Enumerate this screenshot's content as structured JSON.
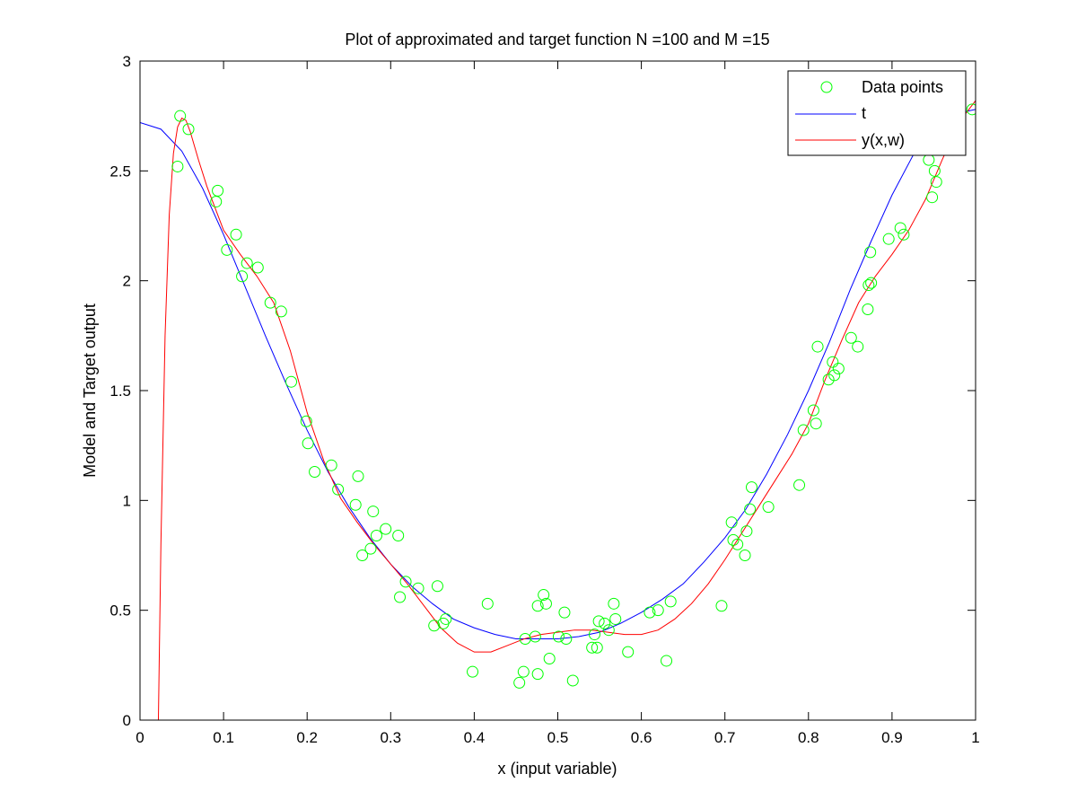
{
  "chart_data": {
    "type": "line",
    "title": "Plot of approximated and target function N =100 and M =15",
    "xlabel": "x (input variable)",
    "ylabel": "Model and Target output",
    "xlim": [
      0,
      1
    ],
    "ylim": [
      0,
      3
    ],
    "xticks": [
      "0",
      "0.1",
      "0.2",
      "0.3",
      "0.4",
      "0.5",
      "0.6",
      "0.7",
      "0.8",
      "0.9",
      "1"
    ],
    "yticks": [
      "0",
      "0.5",
      "1",
      "1.5",
      "2",
      "2.5",
      "3"
    ],
    "grid": false,
    "legend_position": "top-right",
    "colors": {
      "data_points": "#00ff00",
      "target": "#0000ff",
      "model": "#ff0000"
    },
    "series": [
      {
        "name": "Data points",
        "style": "markers",
        "x": [
          0.045,
          0.048,
          0.058,
          0.091,
          0.093,
          0.104,
          0.115,
          0.122,
          0.128,
          0.141,
          0.156,
          0.169,
          0.181,
          0.199,
          0.201,
          0.209,
          0.229,
          0.237,
          0.258,
          0.261,
          0.266,
          0.276,
          0.279,
          0.283,
          0.294,
          0.309,
          0.311,
          0.318,
          0.333,
          0.352,
          0.356,
          0.363,
          0.366,
          0.398,
          0.416,
          0.454,
          0.459,
          0.461,
          0.473,
          0.476,
          0.476,
          0.483,
          0.486,
          0.49,
          0.501,
          0.508,
          0.51,
          0.518,
          0.541,
          0.544,
          0.547,
          0.549,
          0.556,
          0.561,
          0.567,
          0.569,
          0.584,
          0.61,
          0.62,
          0.63,
          0.635,
          0.696,
          0.708,
          0.71,
          0.715,
          0.724,
          0.726,
          0.73,
          0.732,
          0.752,
          0.789,
          0.794,
          0.806,
          0.809,
          0.811,
          0.824,
          0.829,
          0.831,
          0.836,
          0.851,
          0.859,
          0.871,
          0.872,
          0.874,
          0.875,
          0.896,
          0.91,
          0.914,
          0.944,
          0.948,
          0.951,
          0.953,
          0.996
        ],
        "y": [
          2.52,
          2.75,
          2.69,
          2.36,
          2.41,
          2.14,
          2.21,
          2.02,
          2.08,
          2.06,
          1.9,
          1.86,
          1.54,
          1.36,
          1.26,
          1.13,
          1.16,
          1.05,
          0.98,
          1.11,
          0.75,
          0.78,
          0.95,
          0.84,
          0.87,
          0.84,
          0.56,
          0.63,
          0.6,
          0.43,
          0.61,
          0.44,
          0.46,
          0.22,
          0.53,
          0.17,
          0.22,
          0.37,
          0.38,
          0.21,
          0.52,
          0.57,
          0.53,
          0.28,
          0.38,
          0.49,
          0.37,
          0.18,
          0.33,
          0.39,
          0.33,
          0.45,
          0.44,
          0.41,
          0.53,
          0.46,
          0.31,
          0.49,
          0.5,
          0.27,
          0.54,
          0.52,
          0.9,
          0.82,
          0.8,
          0.75,
          0.86,
          0.96,
          1.06,
          0.97,
          1.07,
          1.32,
          1.41,
          1.35,
          1.7,
          1.55,
          1.63,
          1.57,
          1.6,
          1.74,
          1.7,
          1.87,
          1.98,
          2.13,
          1.99,
          2.19,
          2.24,
          2.21,
          2.55,
          2.38,
          2.5,
          2.45,
          2.78
        ]
      },
      {
        "name": "t",
        "style": "line",
        "x": [
          0,
          0.025,
          0.05,
          0.075,
          0.1,
          0.125,
          0.15,
          0.175,
          0.2,
          0.225,
          0.25,
          0.275,
          0.3,
          0.325,
          0.35,
          0.375,
          0.4,
          0.425,
          0.45,
          0.475,
          0.5,
          0.525,
          0.55,
          0.575,
          0.6,
          0.625,
          0.65,
          0.675,
          0.7,
          0.725,
          0.75,
          0.775,
          0.8,
          0.825,
          0.85,
          0.875,
          0.9,
          0.925,
          0.95,
          0.975,
          1
        ],
        "y": [
          2.72,
          2.69,
          2.59,
          2.42,
          2.21,
          1.98,
          1.75,
          1.53,
          1.32,
          1.13,
          0.97,
          0.83,
          0.71,
          0.61,
          0.53,
          0.46,
          0.42,
          0.39,
          0.37,
          0.37,
          0.37,
          0.38,
          0.4,
          0.44,
          0.49,
          0.55,
          0.62,
          0.72,
          0.83,
          0.96,
          1.12,
          1.3,
          1.5,
          1.72,
          1.96,
          2.18,
          2.39,
          2.57,
          2.7,
          2.76,
          2.78
        ]
      },
      {
        "name": "y(x,w)",
        "style": "line",
        "x": [
          0.022,
          0.025,
          0.03,
          0.035,
          0.04,
          0.045,
          0.05,
          0.055,
          0.06,
          0.07,
          0.08,
          0.09,
          0.1,
          0.12,
          0.14,
          0.16,
          0.18,
          0.2,
          0.22,
          0.24,
          0.26,
          0.28,
          0.3,
          0.32,
          0.34,
          0.36,
          0.38,
          0.4,
          0.42,
          0.44,
          0.46,
          0.48,
          0.5,
          0.52,
          0.54,
          0.56,
          0.58,
          0.6,
          0.62,
          0.64,
          0.66,
          0.68,
          0.7,
          0.72,
          0.74,
          0.76,
          0.78,
          0.8,
          0.82,
          0.84,
          0.86,
          0.88,
          0.9,
          0.92,
          0.94,
          0.96,
          0.98,
          1
        ],
        "y": [
          0,
          0.8,
          1.75,
          2.3,
          2.58,
          2.7,
          2.74,
          2.73,
          2.68,
          2.55,
          2.43,
          2.33,
          2.23,
          2.12,
          2.02,
          1.9,
          1.68,
          1.4,
          1.18,
          1.01,
          0.9,
          0.8,
          0.71,
          0.62,
          0.52,
          0.42,
          0.35,
          0.31,
          0.31,
          0.34,
          0.37,
          0.39,
          0.4,
          0.41,
          0.41,
          0.4,
          0.39,
          0.39,
          0.41,
          0.46,
          0.53,
          0.62,
          0.73,
          0.85,
          0.97,
          1.09,
          1.21,
          1.35,
          1.55,
          1.73,
          1.9,
          2.02,
          2.12,
          2.23,
          2.37,
          2.55,
          2.72,
          2.82
        ]
      }
    ]
  }
}
